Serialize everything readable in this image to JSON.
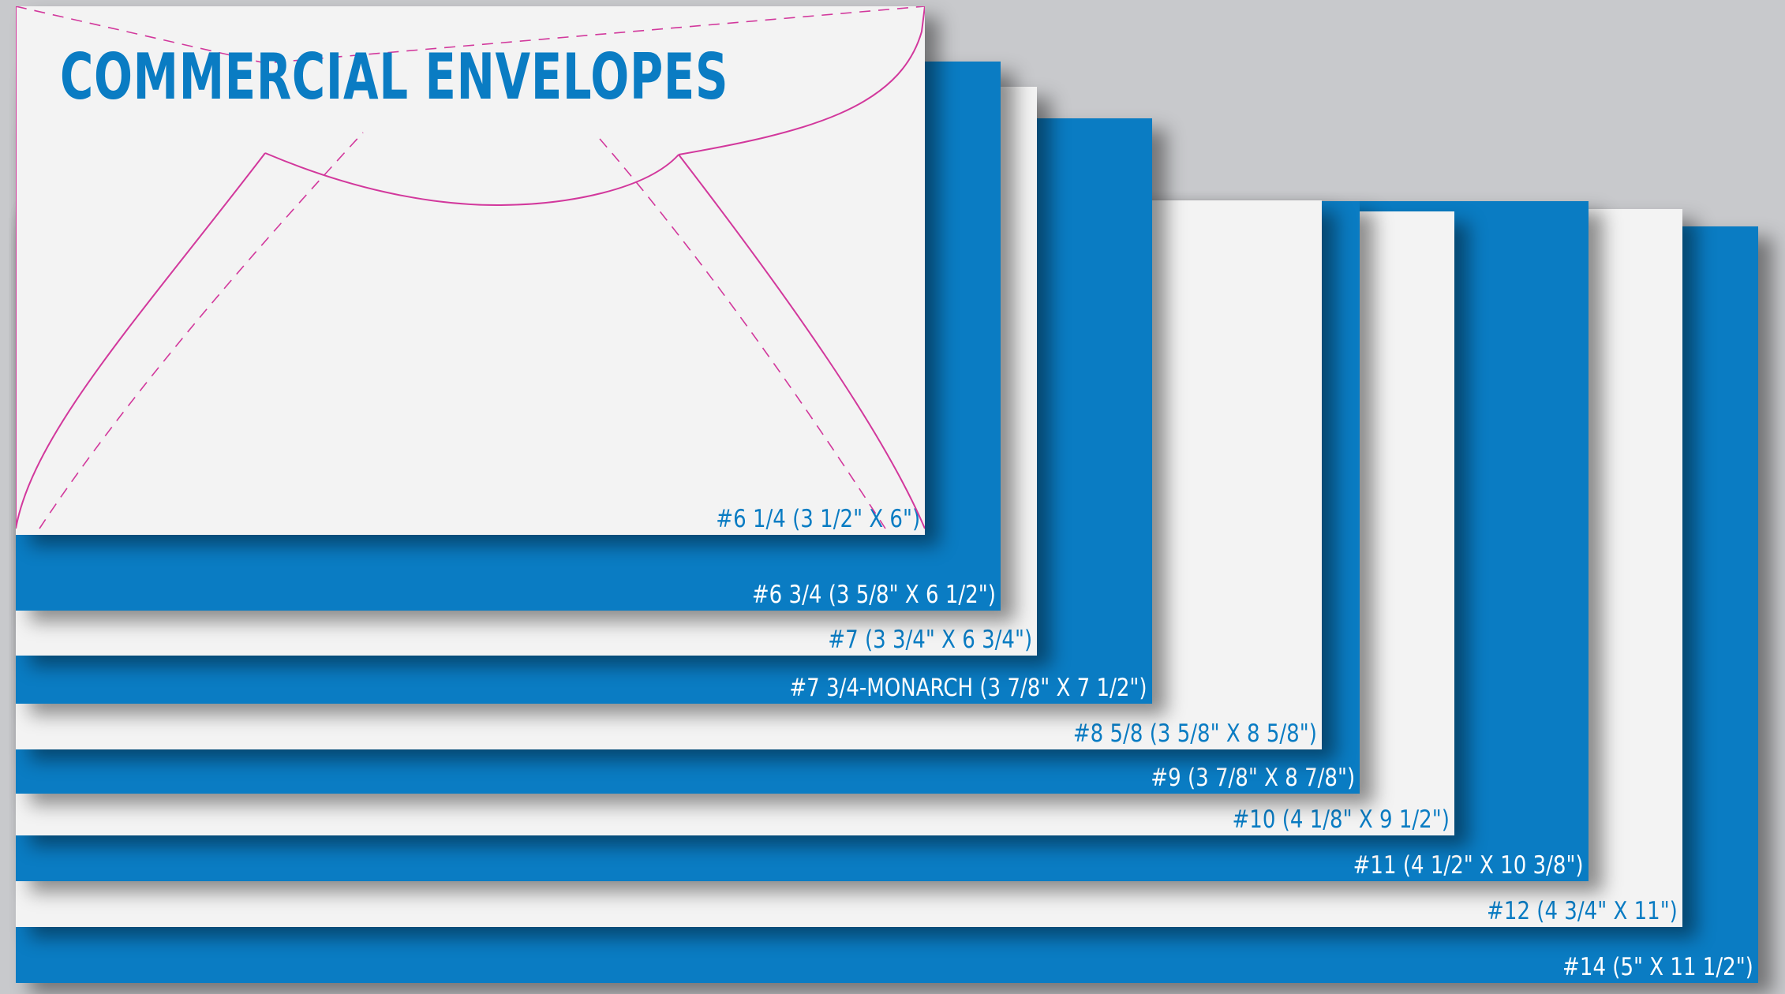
{
  "title": "COMMERCIAL ENVELOPES",
  "colors": {
    "blue": "#0a7cc3",
    "white": "#f3f3f3",
    "background": "#c8c9cc",
    "flap_line": "#d2389c"
  },
  "envelopes": [
    {
      "label": "#6 1/4 (3 1/2\" X 6\")",
      "color": "white"
    },
    {
      "label": "#6 3/4 (3 5/8\" X 6 1/2\")",
      "color": "blue"
    },
    {
      "label": "#7 (3 3/4\" X 6 3/4\")",
      "color": "white"
    },
    {
      "label": "#7 3/4-MONARCH (3 7/8\" X 7 1/2\")",
      "color": "blue"
    },
    {
      "label": "#8 5/8 (3 5/8\" X 8 5/8\")",
      "color": "white"
    },
    {
      "label": "#9 (3 7/8\" X 8 7/8\")",
      "color": "blue"
    },
    {
      "label": "#10 (4 1/8\" X 9 1/2\")",
      "color": "white"
    },
    {
      "label": "#11 (4 1/2\" X 10 3/8\")",
      "color": "blue"
    },
    {
      "label": "#12 (4 3/4\" X 11\")",
      "color": "white"
    },
    {
      "label": "#14 (5\" X 11 1/2\")",
      "color": "blue"
    }
  ]
}
